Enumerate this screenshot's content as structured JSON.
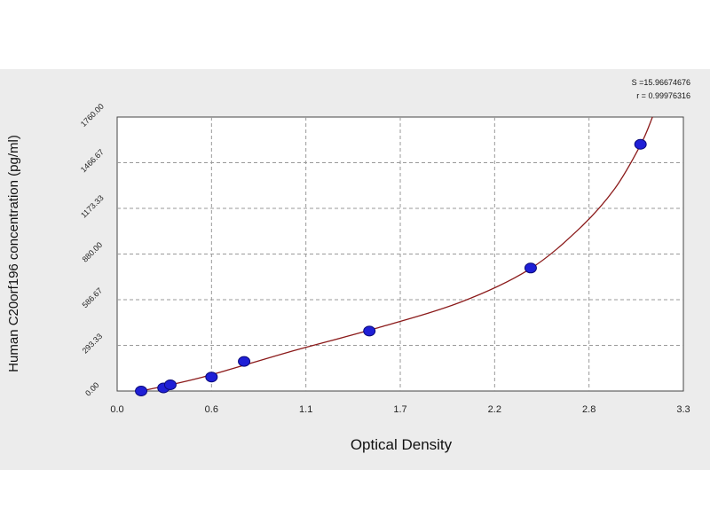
{
  "chart_data": {
    "type": "scatter",
    "xlabel": "Optical Density",
    "ylabel": "Human C20orf196 concentration (pg/ml)",
    "xlim": [
      0.0,
      3.3
    ],
    "ylim": [
      0.0,
      1760.0
    ],
    "x_ticks": [
      "0.0",
      "0.6",
      "1.1",
      "1.7",
      "2.2",
      "2.8",
      "3.3"
    ],
    "y_ticks": [
      "0.00",
      "293.33",
      "586.67",
      "880.00",
      "1173.33",
      "1466.67",
      "1760.00"
    ],
    "grid": true,
    "points": {
      "x": [
        0.14,
        0.27,
        0.31,
        0.55,
        0.74,
        1.47,
        2.41,
        3.05
      ],
      "y": [
        0,
        20,
        40,
        90,
        190,
        385,
        790,
        1585
      ]
    },
    "fit_curve": {
      "x": [
        0.14,
        0.5,
        1.0,
        1.5,
        2.0,
        2.4,
        2.7,
        2.9,
        3.05,
        3.12
      ],
      "y": [
        0,
        90,
        250,
        400,
        570,
        780,
        1050,
        1300,
        1580,
        1760
      ]
    },
    "point_color": "#1f1fd6",
    "curve_color": "#8b1a1a",
    "stats": {
      "s_line": "S =15.96674676",
      "r_line": "r = 0.99976316"
    }
  }
}
